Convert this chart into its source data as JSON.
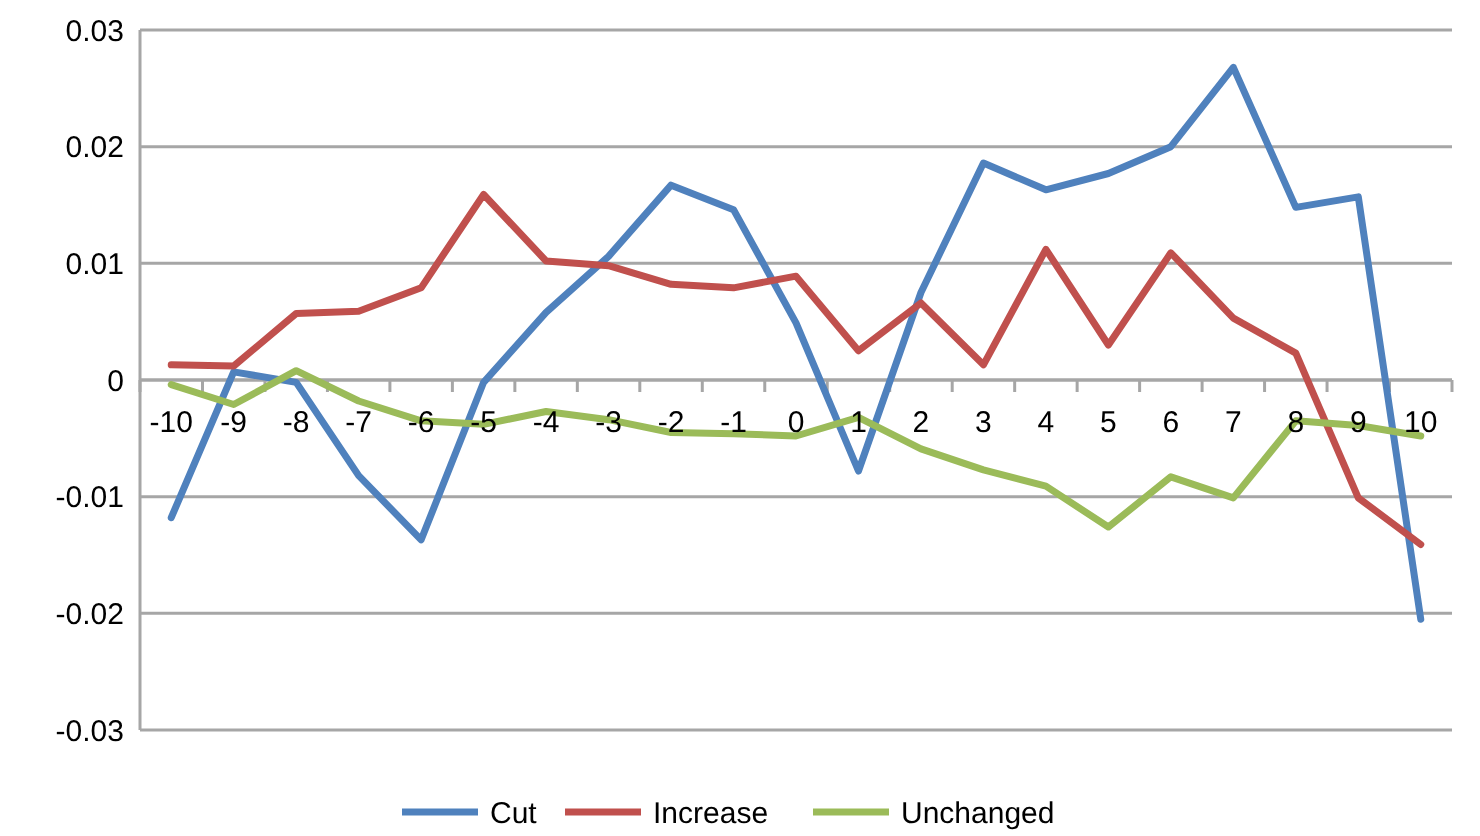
{
  "chart_data": {
    "type": "line",
    "categories": [
      "-10",
      "-9",
      "-8",
      "-7",
      "-6",
      "-5",
      "-4",
      "-3",
      "-2",
      "-1",
      "0",
      "1",
      "2",
      "3",
      "4",
      "5",
      "6",
      "7",
      "8",
      "9",
      "10"
    ],
    "series": [
      {
        "name": "Cut",
        "color": "#4f81bd",
        "values": [
          -0.0118,
          0.0007,
          -0.0002,
          -0.0082,
          -0.0137,
          -0.0002,
          0.0058,
          0.0106,
          0.0167,
          0.0146,
          0.0049,
          -0.0078,
          0.0075,
          0.0186,
          0.0163,
          0.0177,
          0.02,
          0.0268,
          0.0148,
          0.0157,
          -0.0205
        ]
      },
      {
        "name": "Increase",
        "color": "#c0504d",
        "values": [
          0.0013,
          0.0012,
          0.0057,
          0.0059,
          0.0079,
          0.0159,
          0.0102,
          0.0098,
          0.0082,
          0.0079,
          0.0089,
          0.0025,
          0.0066,
          0.0013,
          0.0112,
          0.003,
          0.0109,
          0.0053,
          0.0023,
          -0.0101,
          -0.0141
        ]
      },
      {
        "name": "Unchanged",
        "color": "#9bbb59",
        "values": [
          -0.0004,
          -0.0021,
          0.0008,
          -0.0018,
          -0.0035,
          -0.0038,
          -0.0027,
          -0.0034,
          -0.0045,
          -0.0046,
          -0.0048,
          -0.0032,
          -0.0059,
          -0.0077,
          -0.0091,
          -0.0126,
          -0.0083,
          -0.0101,
          -0.0035,
          -0.0039,
          -0.0048
        ]
      }
    ],
    "ylim": [
      -0.03,
      0.03
    ],
    "yticks": [
      -0.03,
      {
        "value": -0.02,
        "label": "-0.02"
      },
      {
        "value": -0.01,
        "label": "-0.01"
      },
      0,
      {
        "value": 0.01,
        "label": "0.01"
      },
      {
        "value": 0.02,
        "label": "0.02"
      },
      {
        "value": 0.03,
        "label": "0.03"
      }
    ],
    "grid": "y",
    "legend": "bottom",
    "marker": "none",
    "line_style": "solid"
  }
}
